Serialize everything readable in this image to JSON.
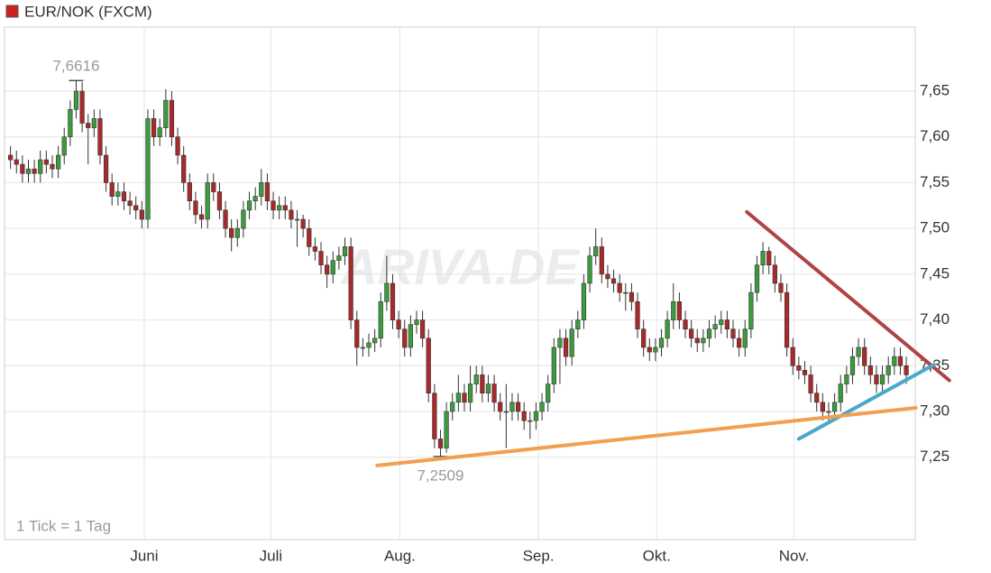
{
  "chart_data": {
    "type": "candlestick",
    "title": "EUR/NOK (FXCM)",
    "title_color": "#cc2222",
    "footnote": "1 Tick = 1 Tag",
    "watermark": "ARIVA.DE",
    "up_color": "#3c9c3c",
    "down_color": "#a82a2a",
    "xlim": [
      -1,
      151.5
    ],
    "ylim": [
      7.16,
      7.72
    ],
    "grid": true,
    "xticks": [
      {
        "value": 22.4,
        "label": "Juni"
      },
      {
        "value": 43.6,
        "label": "Juli"
      },
      {
        "value": 65.2,
        "label": "Aug."
      },
      {
        "value": 88.4,
        "label": "Sep."
      },
      {
        "value": 108.2,
        "label": "Okt."
      },
      {
        "value": 131.2,
        "label": "Nov."
      }
    ],
    "yticks": [
      {
        "value": 7.25,
        "label": "7,25"
      },
      {
        "value": 7.3,
        "label": "7,30"
      },
      {
        "value": 7.35,
        "label": "7,35"
      },
      {
        "value": 7.4,
        "label": "7,40"
      },
      {
        "value": 7.45,
        "label": "7,45"
      },
      {
        "value": 7.5,
        "label": "7,50"
      },
      {
        "value": 7.55,
        "label": "7,55"
      },
      {
        "value": 7.6,
        "label": "7,60"
      },
      {
        "value": 7.65,
        "label": "7,65"
      }
    ],
    "open": [
      7.58,
      7.575,
      7.57,
      7.56,
      7.565,
      7.56,
      7.575,
      7.57,
      7.565,
      7.58,
      7.6,
      7.63,
      7.65,
      7.615,
      7.61,
      7.62,
      7.58,
      7.55,
      7.535,
      7.54,
      7.53,
      7.525,
      7.52,
      7.51,
      7.62,
      7.6,
      7.61,
      7.64,
      7.6,
      7.58,
      7.55,
      7.53,
      7.515,
      7.51,
      7.55,
      7.54,
      7.52,
      7.5,
      7.49,
      7.5,
      7.52,
      7.53,
      7.535,
      7.55,
      7.53,
      7.52,
      7.525,
      7.52,
      7.51,
      7.51,
      7.5,
      7.48,
      7.475,
      7.46,
      7.45,
      7.465,
      7.47,
      7.48,
      7.4,
      7.37,
      7.37,
      7.375,
      7.38,
      7.42,
      7.44,
      7.4,
      7.39,
      7.37,
      7.395,
      7.4,
      7.38,
      7.32,
      7.27,
      7.26,
      7.3,
      7.31,
      7.32,
      7.31,
      7.33,
      7.34,
      7.32,
      7.33,
      7.31,
      7.3,
      7.3,
      7.31,
      7.3,
      7.29,
      7.29,
      7.3,
      7.31,
      7.33,
      7.37,
      7.38,
      7.36,
      7.39,
      7.4,
      7.44,
      7.47,
      7.48,
      7.45,
      7.445,
      7.44,
      7.43,
      7.43,
      7.42,
      7.39,
      7.37,
      7.365,
      7.37,
      7.38,
      7.4,
      7.42,
      7.4,
      7.39,
      7.38,
      7.375,
      7.38,
      7.39,
      7.395,
      7.4,
      7.39,
      7.38,
      7.37,
      7.39,
      7.43,
      7.46,
      7.475,
      7.46,
      7.44,
      7.43,
      7.37,
      7.35,
      7.345,
      7.34,
      7.32,
      7.31,
      7.3,
      7.3,
      7.31,
      7.33,
      7.34,
      7.36,
      7.37,
      7.35,
      7.34,
      7.33,
      7.34,
      7.35,
      7.36,
      7.35
    ],
    "high": [
      7.59,
      7.585,
      7.58,
      7.575,
      7.575,
      7.585,
      7.585,
      7.58,
      7.59,
      7.61,
      7.64,
      7.6616,
      7.66,
      7.625,
      7.63,
      7.63,
      7.59,
      7.56,
      7.55,
      7.55,
      7.54,
      7.535,
      7.53,
      7.63,
      7.63,
      7.62,
      7.652,
      7.65,
      7.61,
      7.59,
      7.56,
      7.54,
      7.525,
      7.56,
      7.56,
      7.55,
      7.53,
      7.51,
      7.51,
      7.53,
      7.54,
      7.545,
      7.565,
      7.56,
      7.54,
      7.535,
      7.535,
      7.53,
      7.52,
      7.515,
      7.51,
      7.49,
      7.485,
      7.47,
      7.475,
      7.48,
      7.49,
      7.49,
      7.41,
      7.38,
      7.385,
      7.39,
      7.43,
      7.47,
      7.45,
      7.41,
      7.4,
      7.405,
      7.41,
      7.41,
      7.39,
      7.33,
      7.28,
      7.31,
      7.32,
      7.34,
      7.33,
      7.35,
      7.35,
      7.35,
      7.34,
      7.34,
      7.32,
      7.33,
      7.32,
      7.32,
      7.31,
      7.3,
      7.31,
      7.32,
      7.34,
      7.38,
      7.39,
      7.39,
      7.4,
      7.41,
      7.45,
      7.48,
      7.5,
      7.49,
      7.46,
      7.455,
      7.45,
      7.44,
      7.44,
      7.43,
      7.4,
      7.38,
      7.38,
      7.39,
      7.41,
      7.44,
      7.43,
      7.41,
      7.4,
      7.39,
      7.39,
      7.4,
      7.405,
      7.41,
      7.41,
      7.4,
      7.39,
      7.4,
      7.44,
      7.47,
      7.485,
      7.48,
      7.47,
      7.45,
      7.44,
      7.38,
      7.36,
      7.355,
      7.35,
      7.33,
      7.32,
      7.31,
      7.32,
      7.34,
      7.35,
      7.37,
      7.38,
      7.38,
      7.36,
      7.35,
      7.35,
      7.36,
      7.37,
      7.37,
      7.36
    ],
    "low": [
      7.565,
      7.56,
      7.55,
      7.55,
      7.55,
      7.55,
      7.56,
      7.555,
      7.555,
      7.57,
      7.59,
      7.62,
      7.605,
      7.57,
      7.6,
      7.57,
      7.54,
      7.525,
      7.525,
      7.52,
      7.515,
      7.51,
      7.5,
      7.5,
      7.59,
      7.59,
      7.6,
      7.59,
      7.57,
      7.54,
      7.52,
      7.505,
      7.5,
      7.5,
      7.53,
      7.51,
      7.49,
      7.475,
      7.48,
      7.49,
      7.51,
      7.52,
      7.525,
      7.52,
      7.51,
      7.51,
      7.51,
      7.5,
      7.48,
      7.49,
      7.47,
      7.465,
      7.45,
      7.435,
      7.44,
      7.455,
      7.46,
      7.39,
      7.35,
      7.36,
      7.36,
      7.365,
      7.37,
      7.41,
      7.39,
      7.38,
      7.36,
      7.36,
      7.385,
      7.37,
      7.31,
      7.26,
      7.2509,
      7.255,
      7.29,
      7.3,
      7.3,
      7.3,
      7.32,
      7.31,
      7.31,
      7.3,
      7.29,
      7.26,
      7.29,
      7.29,
      7.28,
      7.27,
      7.28,
      7.29,
      7.3,
      7.32,
      7.33,
      7.35,
      7.35,
      7.38,
      7.39,
      7.43,
      7.46,
      7.44,
      7.435,
      7.43,
      7.42,
      7.41,
      7.41,
      7.38,
      7.36,
      7.355,
      7.355,
      7.36,
      7.37,
      7.39,
      7.39,
      7.38,
      7.37,
      7.365,
      7.365,
      7.37,
      7.38,
      7.385,
      7.38,
      7.37,
      7.36,
      7.36,
      7.38,
      7.42,
      7.45,
      7.45,
      7.43,
      7.42,
      7.36,
      7.34,
      7.335,
      7.33,
      7.31,
      7.3,
      7.29,
      7.29,
      7.29,
      7.3,
      7.32,
      7.33,
      7.35,
      7.34,
      7.33,
      7.32,
      7.32,
      7.33,
      7.34,
      7.34,
      7.33
    ],
    "close": [
      7.575,
      7.57,
      7.56,
      7.565,
      7.56,
      7.575,
      7.57,
      7.565,
      7.58,
      7.6,
      7.63,
      7.65,
      7.615,
      7.61,
      7.62,
      7.58,
      7.55,
      7.535,
      7.54,
      7.53,
      7.525,
      7.52,
      7.51,
      7.62,
      7.6,
      7.61,
      7.64,
      7.6,
      7.58,
      7.55,
      7.53,
      7.515,
      7.51,
      7.55,
      7.54,
      7.52,
      7.5,
      7.49,
      7.5,
      7.52,
      7.53,
      7.535,
      7.55,
      7.53,
      7.52,
      7.525,
      7.52,
      7.51,
      7.51,
      7.5,
      7.48,
      7.475,
      7.46,
      7.45,
      7.465,
      7.47,
      7.48,
      7.4,
      7.37,
      7.37,
      7.375,
      7.38,
      7.42,
      7.44,
      7.4,
      7.39,
      7.37,
      7.395,
      7.4,
      7.38,
      7.32,
      7.27,
      7.26,
      7.3,
      7.31,
      7.32,
      7.31,
      7.33,
      7.34,
      7.32,
      7.33,
      7.31,
      7.3,
      7.3,
      7.31,
      7.3,
      7.29,
      7.29,
      7.3,
      7.31,
      7.33,
      7.37,
      7.38,
      7.36,
      7.39,
      7.4,
      7.44,
      7.47,
      7.48,
      7.45,
      7.445,
      7.44,
      7.43,
      7.43,
      7.42,
      7.39,
      7.37,
      7.365,
      7.37,
      7.38,
      7.4,
      7.42,
      7.4,
      7.39,
      7.38,
      7.375,
      7.38,
      7.39,
      7.395,
      7.4,
      7.39,
      7.38,
      7.37,
      7.39,
      7.43,
      7.46,
      7.475,
      7.46,
      7.44,
      7.43,
      7.37,
      7.35,
      7.345,
      7.34,
      7.32,
      7.31,
      7.3,
      7.3,
      7.31,
      7.33,
      7.34,
      7.36,
      7.37,
      7.35,
      7.34,
      7.33,
      7.34,
      7.35,
      7.36,
      7.35,
      7.34
    ],
    "annotations": [
      {
        "label": "7,6616",
        "value": 7.6616,
        "x": 11,
        "position": "above"
      },
      {
        "label": "7,2509",
        "value": 7.2509,
        "x": 72,
        "position": "below"
      }
    ],
    "trend_lines": [
      {
        "color": "#b04444",
        "x": [
          123.3,
          157.2
        ],
        "y": [
          7.518,
          7.334
        ]
      },
      {
        "color": "#4aa8c8",
        "x": [
          132,
          154.6
        ],
        "y": [
          7.27,
          7.351
        ]
      },
      {
        "color": "#f0a050",
        "x": [
          61.4,
          151.6
        ],
        "y": [
          7.241,
          7.304
        ]
      }
    ]
  }
}
